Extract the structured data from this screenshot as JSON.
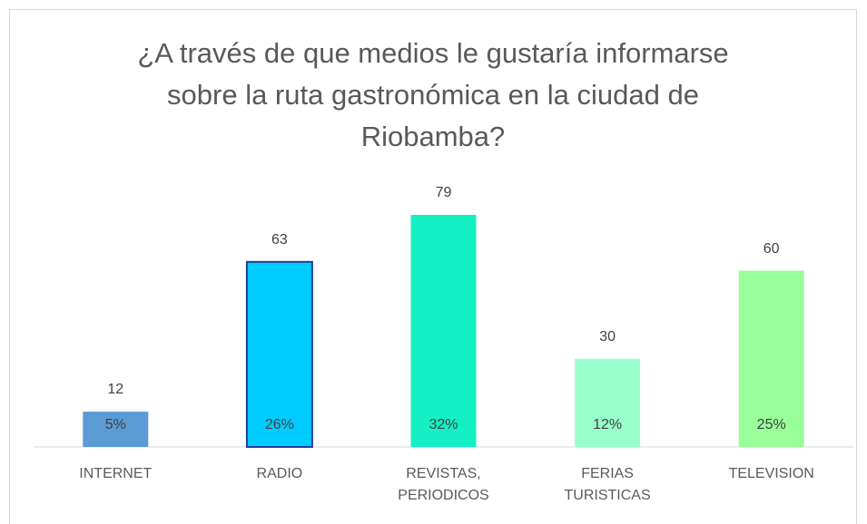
{
  "chart_data": {
    "type": "bar",
    "title": "¿A través de que medios le gustaría informarse sobre la ruta gastronómica en la ciudad de Riobamba?",
    "categories": [
      "INTERNET",
      "RADIO",
      "REVISTAS, PERIODICOS",
      "FERIAS TURISTICAS",
      "TELEVISION"
    ],
    "values": [
      12,
      63,
      79,
      30,
      60
    ],
    "colors": [
      "#5b9bd5",
      "#00ccff",
      "#14f0c3",
      "#99ffcc",
      "#99ff99"
    ],
    "shares": {
      "values": [
        5,
        26,
        32,
        12,
        25
      ],
      "value_labels": [
        "5%",
        "26%",
        "32%",
        "12%",
        "25%"
      ]
    }
  }
}
